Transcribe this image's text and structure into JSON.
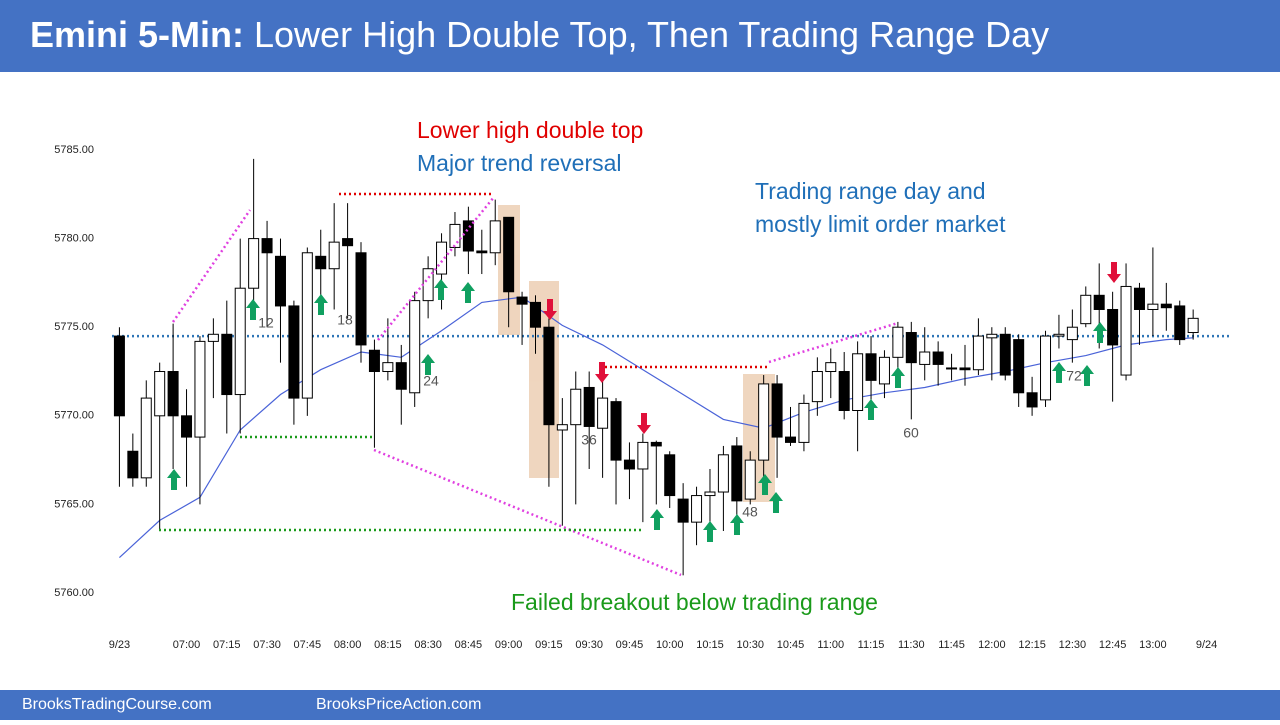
{
  "chart_data": {
    "type": "candlestick",
    "title_bold": "Emini 5-Min:",
    "title": "Lower High Double Top, Then Trading Range Day",
    "x": [
      395,
      400,
      405,
      410,
      415,
      420,
      425,
      430,
      435,
      440,
      445,
      450,
      455,
      460,
      465,
      470,
      475,
      480,
      485,
      490,
      495,
      500,
      505,
      510,
      515,
      520,
      525,
      530,
      535,
      540,
      545,
      550,
      555,
      560,
      565,
      570,
      575,
      580,
      585,
      590,
      595,
      600,
      605,
      610,
      615,
      620,
      625,
      630,
      635,
      640,
      645,
      650,
      655,
      660,
      665,
      670,
      675,
      680,
      685,
      690,
      695,
      700,
      705,
      710,
      715,
      720,
      725,
      730,
      735,
      740,
      745,
      750,
      755,
      760,
      765,
      770,
      775,
      780,
      785,
      790,
      795
    ],
    "open": [
      5774.5,
      5768,
      5766.5,
      5770,
      5772.5,
      5770,
      5768.8,
      5774.2,
      5774.6,
      5771.2,
      5777.2,
      5780,
      5779,
      5776.2,
      5771,
      5779,
      5778.3,
      5780,
      5779.2,
      5773.7,
      5772.5,
      5773,
      5771.3,
      5776.5,
      5778,
      5779.5,
      5781,
      5779.3,
      5779.2,
      5781.2,
      5776.7,
      5776.4,
      5775,
      5769.2,
      5769.5,
      5771.6,
      5769.3,
      5770.8,
      5767.5,
      5767,
      5768.5,
      5767.8,
      5765.3,
      5764,
      5765.5,
      5765.7,
      5768.3,
      5765.3,
      5767.5,
      5771.8,
      5768.8,
      5768.5,
      5770.8,
      5772.5,
      5772.5,
      5770.3,
      5773.5,
      5771.8,
      5773.3,
      5774.7,
      5772.9,
      5773.6,
      5772.7,
      5772.7,
      5772.6,
      5774.4,
      5774.6,
      5774.3,
      5771.3,
      5770.9,
      5774.5,
      5774.3,
      5775.2,
      5776.8,
      5776,
      5772.3,
      5777.2,
      5776,
      5776.3,
      5776.2,
      5774.7
    ],
    "high": [
      5775,
      5769,
      5772,
      5773,
      5775.2,
      5771.5,
      5774.5,
      5775.5,
      5776.5,
      5780,
      5784.5,
      5781,
      5780,
      5776.5,
      5779.5,
      5780.5,
      5782,
      5782,
      5779.8,
      5774.3,
      5775.5,
      5774,
      5777,
      5779,
      5780.3,
      5781.5,
      5781.8,
      5780.5,
      5782.2,
      5781.2,
      5777,
      5776.8,
      5775.5,
      5771,
      5772.5,
      5772.5,
      5772,
      5771,
      5768.5,
      5769,
      5768.6,
      5768,
      5766.2,
      5766,
      5767,
      5768.3,
      5768.8,
      5768,
      5772.3,
      5772.3,
      5770.5,
      5771.2,
      5773.3,
      5773.8,
      5773.6,
      5774.2,
      5774.5,
      5773.7,
      5775.3,
      5775.3,
      5775,
      5774.2,
      5773.5,
      5774,
      5775.5,
      5775,
      5775,
      5774.6,
      5772.2,
      5774.8,
      5775.7,
      5776,
      5777.3,
      5778.6,
      5777,
      5778.6,
      5777.5,
      5779.5,
      5777.5,
      5776.5,
      5776
    ],
    "low": [
      5766,
      5766,
      5766,
      5763.5,
      5767,
      5766,
      5765,
      5771,
      5769,
      5769,
      5776.5,
      5775,
      5773,
      5769.5,
      5770,
      5776.5,
      5776,
      5775.5,
      5773,
      5768.2,
      5772,
      5769.5,
      5770.5,
      5775.5,
      5776,
      5779,
      5778,
      5778,
      5778.5,
      5775,
      5774,
      5773.5,
      5766,
      5763.8,
      5765,
      5767,
      5766.5,
      5765,
      5765.3,
      5764,
      5765,
      5764.8,
      5761,
      5762.7,
      5763.5,
      5763.5,
      5764,
      5765,
      5766,
      5766.5,
      5768.3,
      5768,
      5770,
      5771,
      5769.8,
      5768,
      5770.5,
      5771,
      5772.5,
      5769.8,
      5772,
      5771.7,
      5772,
      5771.7,
      5772.3,
      5772,
      5772,
      5770.5,
      5770,
      5770.5,
      5773.8,
      5773,
      5775,
      5773.8,
      5770.8,
      5772,
      5774,
      5774.5,
      5774.8,
      5774,
      5774.3
    ],
    "close": [
      5770,
      5766.5,
      5771,
      5772.5,
      5770,
      5768.8,
      5774.2,
      5774.6,
      5771.2,
      5777.2,
      5780,
      5779.2,
      5776.2,
      5771,
      5779.2,
      5778.3,
      5779.8,
      5779.6,
      5774,
      5772.5,
      5773,
      5771.5,
      5776.5,
      5778.3,
      5779.8,
      5780.8,
      5779.3,
      5779.2,
      5781,
      5777,
      5776.3,
      5775,
      5769.5,
      5769.5,
      5771.5,
      5769.4,
      5771,
      5767.5,
      5767,
      5768.5,
      5768.3,
      5765.5,
      5764,
      5765.5,
      5765.7,
      5767.8,
      5765.2,
      5767.5,
      5771.8,
      5768.8,
      5768.5,
      5770.7,
      5772.5,
      5773,
      5770.3,
      5773.5,
      5772,
      5773.3,
      5775,
      5773,
      5773.6,
      5772.9,
      5772.7,
      5772.6,
      5774.5,
      5774.6,
      5772.3,
      5771.3,
      5770.5,
      5774.5,
      5774.6,
      5775,
      5776.8,
      5776,
      5774,
      5777.3,
      5776,
      5776.3,
      5776.1,
      5774.3,
      5775.5
    ],
    "up_color": "#ffffff",
    "down_color": "#000000",
    "moving_average": {
      "color": "#4a63d8",
      "x": [
        395,
        410,
        425,
        440,
        455,
        470,
        485,
        500,
        515,
        530,
        545,
        560,
        575,
        590,
        605,
        620,
        635,
        650,
        665,
        680,
        695,
        710,
        725,
        740,
        755,
        770,
        785,
        795
      ],
      "values": [
        5762,
        5764.1,
        5765.4,
        5769.2,
        5771.2,
        5772.6,
        5773.6,
        5773.3,
        5774.8,
        5776.4,
        5776.7,
        5775.1,
        5774,
        5772.6,
        5771.2,
        5769.8,
        5769.3,
        5770.2,
        5770.9,
        5771.3,
        5771.6,
        5772.1,
        5772.5,
        5773,
        5773.4,
        5774,
        5774.3,
        5774.4
      ]
    },
    "reference_line": {
      "value": 5774.5,
      "color": "#2e75b6"
    },
    "xlim": [
      390,
      805
    ],
    "ylim": [
      5757,
      5789
    ],
    "yticks": [
      {
        "value": 5760,
        "label": "5760.00"
      },
      {
        "value": 5765,
        "label": "5765.00"
      },
      {
        "value": 5770,
        "label": "5770.00"
      },
      {
        "value": 5775,
        "label": "5775.00"
      },
      {
        "value": 5780,
        "label": "5780.00"
      },
      {
        "value": 5785,
        "label": "5785.00"
      }
    ],
    "xticks": [
      {
        "value": 395,
        "label": "9/23"
      },
      {
        "value": 420,
        "label": "07:00"
      },
      {
        "value": 435,
        "label": "07:15"
      },
      {
        "value": 450,
        "label": "07:30"
      },
      {
        "value": 465,
        "label": "07:45"
      },
      {
        "value": 480,
        "label": "08:00"
      },
      {
        "value": 495,
        "label": "08:15"
      },
      {
        "value": 510,
        "label": "08:30"
      },
      {
        "value": 525,
        "label": "08:45"
      },
      {
        "value": 540,
        "label": "09:00"
      },
      {
        "value": 555,
        "label": "09:15"
      },
      {
        "value": 570,
        "label": "09:30"
      },
      {
        "value": 585,
        "label": "09:45"
      },
      {
        "value": 600,
        "label": "10:00"
      },
      {
        "value": 615,
        "label": "10:15"
      },
      {
        "value": 630,
        "label": "10:30"
      },
      {
        "value": 645,
        "label": "10:45"
      },
      {
        "value": 660,
        "label": "11:00"
      },
      {
        "value": 675,
        "label": "11:15"
      },
      {
        "value": 690,
        "label": "11:30"
      },
      {
        "value": 705,
        "label": "11:45"
      },
      {
        "value": 720,
        "label": "12:00"
      },
      {
        "value": 735,
        "label": "12:15"
      },
      {
        "value": 750,
        "label": "12:30"
      },
      {
        "value": 765,
        "label": "12:45"
      },
      {
        "value": 780,
        "label": "13:00"
      },
      {
        "value": 800,
        "label": "9/24"
      }
    ],
    "annotations": [
      "Lower high double top",
      "Major trend reversal",
      "Trading range day and",
      "mostly limit order market",
      "Failed breakout below trading range"
    ],
    "bar_labels": [
      12,
      18,
      24,
      36,
      48,
      60,
      72
    ],
    "footer": [
      "BrooksTradingCourse.com",
      "BrooksPriceAction.com"
    ]
  }
}
